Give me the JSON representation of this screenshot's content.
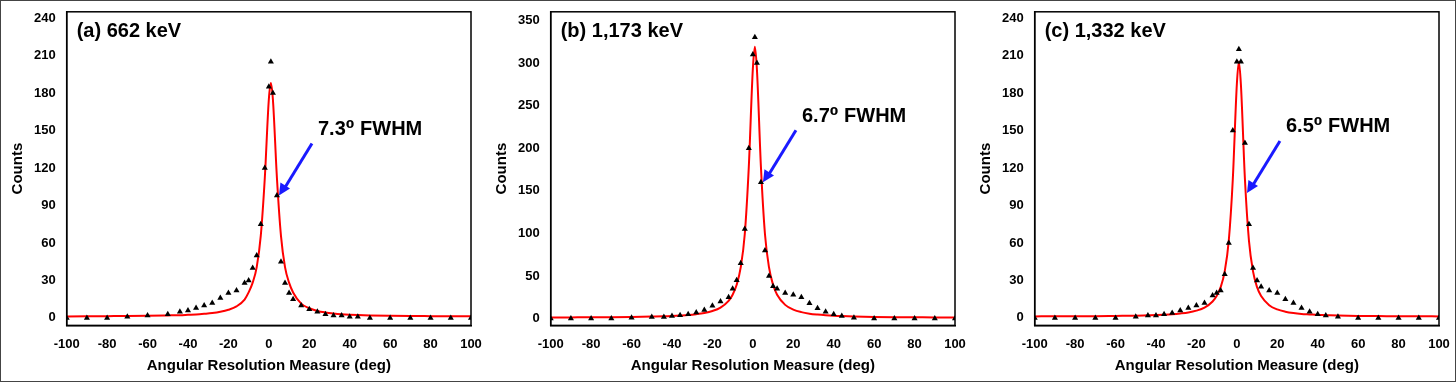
{
  "chart_data": [
    {
      "type": "scatter",
      "title": "(a) 662 keV",
      "x_label": "Angular Resolution Measure (deg)",
      "y_label": "Counts",
      "x": [
        -100,
        -90,
        -80,
        -70,
        -60,
        -50,
        -44,
        -40,
        -36,
        -32,
        -28,
        -24,
        -20,
        -16,
        -12,
        -10,
        -8,
        -6,
        -4,
        -2,
        0,
        1,
        2,
        4,
        6,
        8,
        10,
        12,
        16,
        20,
        24,
        28,
        32,
        36,
        40,
        44,
        50,
        60,
        70,
        80,
        90,
        100
      ],
      "series": [
        {
          "type": "scatter",
          "color": "#000000",
          "marker": "triangle",
          "values": [
            0,
            0,
            0,
            1,
            2,
            3,
            5,
            6,
            8,
            10,
            12,
            16,
            20,
            22,
            28,
            30,
            40,
            50,
            75,
            120,
            185,
            205,
            180,
            98,
            45,
            28,
            20,
            15,
            10,
            7,
            5,
            3,
            2,
            2,
            1,
            1,
            0,
            0,
            0,
            0,
            0,
            0
          ]
        },
        {
          "type": "line",
          "color": "#ff0000",
          "line_style": "solid",
          "values": [
            1.2,
            1.3,
            1.4,
            1.5,
            1.7,
            2.0,
            2.2,
            2.5,
            2.8,
            3.3,
            3.9,
            4.9,
            6.5,
            9.2,
            14.7,
            20.4,
            28.2,
            40.7,
            65.7,
            112,
            175,
            188,
            175,
            112,
            65.7,
            40.7,
            28.2,
            20.4,
            11.4,
            7.7,
            5.6,
            4.4,
            3.6,
            3.0,
            2.6,
            2.3,
            2.0,
            1.7,
            1.5,
            1.4,
            1.3,
            1.3
          ]
        }
      ],
      "xlim": [
        -100,
        100
      ],
      "xticks": [
        -100,
        -80,
        -60,
        -40,
        -20,
        0,
        20,
        40,
        60,
        80,
        100
      ],
      "ylim": [
        -6,
        245
      ],
      "yticks": [
        0,
        30,
        60,
        90,
        120,
        150,
        180,
        210,
        240
      ],
      "grid": false,
      "annotations": [
        {
          "text": "7.3⁰ FWHM",
          "x": 5,
          "y": 98
        }
      ]
    },
    {
      "type": "scatter",
      "title": "(b) 1,173 keV",
      "x_label": "Angular Resolution Measure (deg)",
      "y_label": "Counts",
      "x": [
        -100,
        -90,
        -80,
        -70,
        -60,
        -50,
        -44,
        -40,
        -36,
        -32,
        -28,
        -24,
        -20,
        -16,
        -12,
        -10,
        -8,
        -6,
        -4,
        -2,
        0,
        1,
        2,
        4,
        6,
        8,
        10,
        12,
        16,
        20,
        24,
        28,
        32,
        36,
        40,
        44,
        50,
        60,
        70,
        80,
        90,
        100
      ],
      "series": [
        {
          "type": "scatter",
          "color": "#000000",
          "marker": "triangle",
          "values": [
            0,
            0,
            0,
            0,
            1,
            2,
            2,
            3,
            4,
            5,
            7,
            10,
            15,
            20,
            25,
            35,
            45,
            65,
            105,
            200,
            310,
            330,
            300,
            160,
            80,
            50,
            38,
            35,
            30,
            28,
            25,
            18,
            12,
            8,
            5,
            3,
            1,
            0,
            0,
            0,
            0,
            0
          ]
        },
        {
          "type": "line",
          "color": "#ff0000",
          "line_style": "solid",
          "values": [
            1.3,
            1.4,
            1.5,
            1.7,
            2.0,
            2.4,
            2.7,
            3.1,
            3.6,
            4.2,
            5.2,
            6.6,
            8.9,
            12.9,
            20.8,
            28,
            39.6,
            60,
            99,
            178,
            293,
            319,
            293,
            178,
            99,
            60,
            39.6,
            28,
            16.1,
            10.6,
            7.6,
            5.8,
            4.7,
            3.9,
            3.3,
            2.9,
            2.5,
            2.0,
            1.7,
            1.6,
            1.4,
            1.4
          ]
        }
      ],
      "xlim": [
        -100,
        100
      ],
      "xticks": [
        -100,
        -80,
        -60,
        -40,
        -20,
        0,
        20,
        40,
        60,
        80,
        100
      ],
      "ylim": [
        -8,
        360
      ],
      "yticks": [
        0,
        50,
        100,
        150,
        200,
        250,
        300,
        350
      ],
      "grid": false,
      "annotations": [
        {
          "text": "6.7⁰ FWHM",
          "x": 5,
          "y": 160
        }
      ]
    },
    {
      "type": "scatter",
      "title": "(c) 1,332 keV",
      "x_label": "Angular Resolution Measure (deg)",
      "y_label": "Counts",
      "x": [
        -100,
        -90,
        -80,
        -70,
        -60,
        -50,
        -44,
        -40,
        -36,
        -32,
        -28,
        -24,
        -20,
        -16,
        -12,
        -10,
        -8,
        -6,
        -4,
        -2,
        0,
        1,
        2,
        4,
        6,
        8,
        10,
        12,
        16,
        20,
        24,
        28,
        32,
        36,
        40,
        44,
        50,
        60,
        70,
        80,
        90,
        100
      ],
      "series": [
        {
          "type": "scatter",
          "color": "#000000",
          "marker": "triangle",
          "values": [
            0,
            0,
            0,
            0,
            0,
            1,
            2,
            2,
            3,
            4,
            6,
            8,
            10,
            12,
            18,
            20,
            22,
            35,
            60,
            150,
            205,
            215,
            205,
            140,
            75,
            40,
            30,
            25,
            22,
            20,
            15,
            12,
            8,
            5,
            3,
            2,
            1,
            0,
            0,
            0,
            0,
            0
          ]
        },
        {
          "type": "line",
          "color": "#ff0000",
          "line_style": "solid",
          "values": [
            1.2,
            1.3,
            1.3,
            1.4,
            1.6,
            1.8,
            2.1,
            2.3,
            2.6,
            3.0,
            3.6,
            4.4,
            5.8,
            8.2,
            13.1,
            17.5,
            24.6,
            37.3,
            61.7,
            111,
            187,
            205,
            187,
            111,
            61.7,
            37.3,
            24.6,
            17.5,
            10.2,
            6.8,
            5.0,
            3.9,
            3.2,
            2.8,
            2.4,
            2.2,
            1.9,
            1.6,
            1.5,
            1.3,
            1.3,
            1.2
          ]
        }
      ],
      "xlim": [
        -100,
        100
      ],
      "xticks": [
        -100,
        -80,
        -60,
        -40,
        -20,
        0,
        20,
        40,
        60,
        80,
        100
      ],
      "ylim": [
        -6,
        245
      ],
      "yticks": [
        0,
        30,
        60,
        90,
        120,
        150,
        180,
        210,
        240
      ],
      "grid": false,
      "annotations": [
        {
          "text": "6.5⁰ FWHM",
          "x": 5,
          "y": 100
        }
      ]
    }
  ]
}
